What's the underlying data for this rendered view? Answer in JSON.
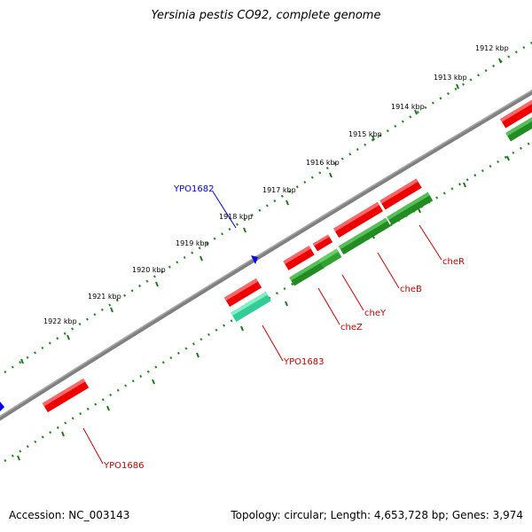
{
  "header": {
    "title": "Yersinia pestis CO92, complete genome"
  },
  "footer": {
    "accession": "Accession: NC_003143",
    "summary": "Topology: circular; Length: 4,653,728 bp; Genes: 3,974"
  },
  "map": {
    "scale_labels": [
      "1912 kbp",
      "1913 kbp",
      "1914 kbp",
      "1915 kbp",
      "1916 kbp",
      "1917 kbp",
      "1918 kbp",
      "1919 kbp",
      "1920 kbp",
      "1921 kbp",
      "1922 kbp"
    ],
    "colors": {
      "backbone": "#808080",
      "forward_gene": "#ff0000",
      "reverse_gene": "#228b22",
      "reverse_gene_light": "#33cc99",
      "tick": "#228b22",
      "marker": "#0000ff",
      "label_red": "#cc0000",
      "label_blue": "#0000cc"
    },
    "gene_labels": [
      "YPO1682",
      "YPO1683",
      "cheZ",
      "cheY",
      "cheB",
      "cheR",
      "YPO1686"
    ]
  }
}
